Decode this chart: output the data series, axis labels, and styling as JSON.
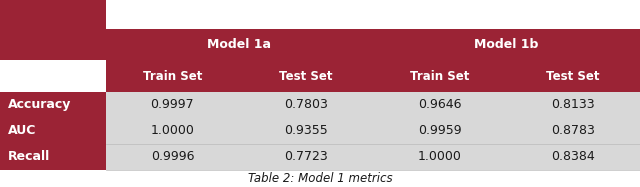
{
  "title": "Table 2: Model 1 metrics",
  "header_bg": "#9B2335",
  "header_text_color": "#FFFFFF",
  "row_bg": "#D8D8D8",
  "row_text_color": "#1a1a1a",
  "col_groups": [
    "Model 1a",
    "Model 1b"
  ],
  "col_subheaders": [
    "Train Set",
    "Test Set",
    "Train Set",
    "Test Set"
  ],
  "row_labels": [
    "Accuracy",
    "AUC",
    "Recall"
  ],
  "data": [
    [
      "0.9997",
      "0.7803",
      "0.9646",
      "0.8133"
    ],
    [
      "1.0000",
      "0.9355",
      "0.9959",
      "0.8783"
    ],
    [
      "0.9996",
      "0.7723",
      "1.0000",
      "0.8384"
    ]
  ],
  "fig_width": 6.4,
  "fig_height": 1.87,
  "dpi": 100
}
